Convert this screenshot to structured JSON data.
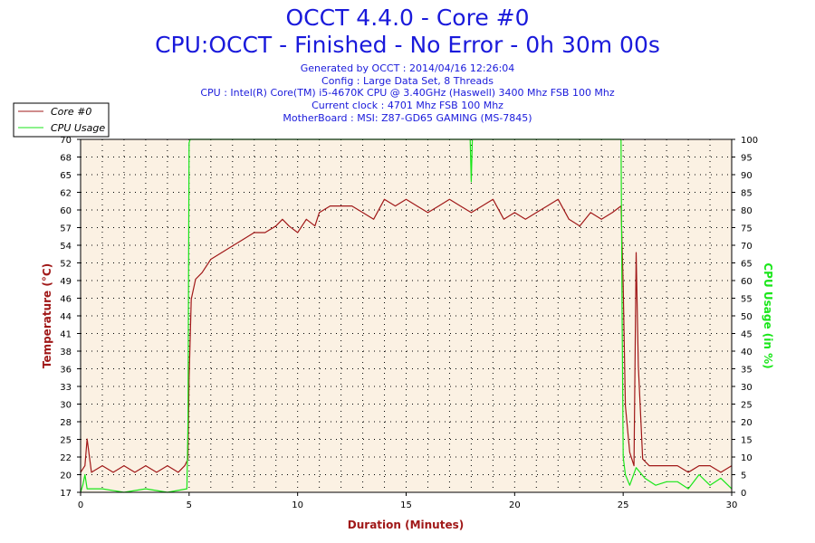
{
  "header": {
    "title": "OCCT 4.4.0 - Core #0",
    "subtitle": "CPU:OCCT - Finished - No Error - 0h 30m 00s",
    "info": [
      "Generated by OCCT : 2014/04/16 12:26:04",
      "Config : Large Data Set, 8 Threads",
      "CPU : Intel(R) Core(TM) i5-4670K CPU @ 3.40GHz (Haswell) 3400 Mhz FSB 100 Mhz",
      "Current clock : 4701 Mhz FSB 100 Mhz",
      "MotherBoard : MSI: Z87-GD65 GAMING (MS-7845)"
    ]
  },
  "colors": {
    "temperature": "#a01818",
    "cpu_usage": "#19e619",
    "title": "#1a1adb",
    "plot_bg": "#fbf1e3"
  },
  "chart_data": {
    "type": "line",
    "xlabel": "Duration (Minutes)",
    "ylabel": "Temperature (°C)",
    "y2label": "CPU Usage (in %)",
    "xlim": [
      0,
      30
    ],
    "ylim": [
      17,
      70
    ],
    "y2lim": [
      0,
      100
    ],
    "x_ticks": [
      "0",
      "5",
      "10",
      "15",
      "20",
      "25",
      "30"
    ],
    "y_ticks": [
      "17",
      "20",
      "22",
      "25",
      "28",
      "30",
      "33",
      "36",
      "38",
      "41",
      "44",
      "46",
      "49",
      "52",
      "54",
      "57",
      "60",
      "62",
      "65",
      "68",
      "70"
    ],
    "y2_ticks": [
      "0",
      "5",
      "10",
      "15",
      "20",
      "25",
      "30",
      "35",
      "40",
      "45",
      "50",
      "55",
      "60",
      "65",
      "70",
      "75",
      "80",
      "85",
      "90",
      "95",
      "100"
    ],
    "grid": true,
    "legend_position": "top-left",
    "series": [
      {
        "name": "Core #0",
        "axis": "left",
        "x": [
          0,
          0.2,
          0.3,
          0.5,
          1,
          1.5,
          2,
          2.5,
          3,
          3.5,
          4,
          4.5,
          4.8,
          4.95,
          5.0,
          5.1,
          5.3,
          5.6,
          6,
          6.5,
          7,
          7.5,
          8,
          8.5,
          9,
          9.3,
          9.6,
          10,
          10.4,
          10.8,
          11,
          11.5,
          12,
          12.5,
          13,
          13.5,
          14,
          14.5,
          15,
          15.5,
          16,
          16.5,
          17,
          17.5,
          18,
          18.5,
          19,
          19.5,
          20,
          20.5,
          21,
          21.5,
          22,
          22.5,
          23,
          23.5,
          24,
          24.5,
          24.9,
          25.0,
          25.1,
          25.3,
          25.5,
          25.6,
          25.7,
          25.9,
          26.2,
          26.5,
          27,
          27.5,
          28,
          28.5,
          29,
          29.5,
          30
        ],
        "values": [
          20,
          21,
          25,
          20,
          21,
          20,
          21,
          20,
          21,
          20,
          21,
          20,
          21,
          22,
          34,
          46,
          49,
          50,
          52,
          53,
          54,
          55,
          56,
          56,
          57,
          58,
          57,
          56,
          58,
          57,
          59,
          60,
          60,
          60,
          59,
          58,
          61,
          60,
          61,
          60,
          59,
          60,
          61,
          60,
          59,
          60,
          61,
          58,
          59,
          58,
          59,
          60,
          61,
          58,
          57,
          59,
          58,
          59,
          60,
          48,
          30,
          23,
          21,
          53,
          36,
          22,
          21,
          21,
          21,
          21,
          20,
          21,
          21,
          20,
          21
        ]
      },
      {
        "name": "CPU Usage",
        "axis": "right",
        "x": [
          0,
          0.1,
          0.2,
          0.3,
          0.5,
          1,
          2,
          3,
          4,
          4.9,
          4.95,
          5.0,
          5.05,
          10,
          15,
          17.95,
          18.0,
          18.05,
          20,
          24.9,
          24.95,
          25.0,
          25.1,
          25.3,
          25.6,
          26,
          26.5,
          27,
          27.5,
          28,
          28.5,
          29,
          29.5,
          30
        ],
        "values": [
          0,
          2,
          5,
          1,
          1,
          1,
          0,
          1,
          0,
          1,
          20,
          99,
          100,
          100,
          100,
          100,
          88,
          100,
          100,
          100,
          50,
          10,
          5,
          2,
          7,
          4,
          2,
          3,
          3,
          1,
          5,
          2,
          4,
          1
        ]
      }
    ]
  }
}
